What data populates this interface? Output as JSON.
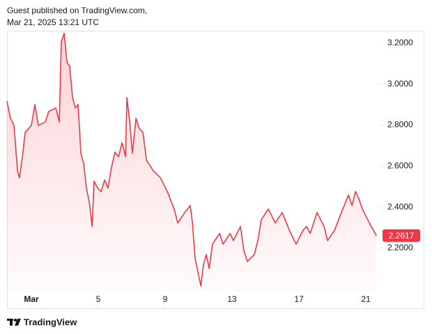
{
  "header": {
    "line1": "Guest published on TradingView.com,",
    "line2": "Mar 21, 2025 13:21 UTC"
  },
  "footer": {
    "brand": "TradingView"
  },
  "chart_data": {
    "type": "area",
    "color": "#f23645",
    "x": [
      -0.46,
      -0.25,
      -0.04,
      0.17,
      0.29,
      0.46,
      0.63,
      1.0,
      1.21,
      1.42,
      1.83,
      2.04,
      2.46,
      2.67,
      2.79,
      2.96,
      3.13,
      3.29,
      3.46,
      3.63,
      3.79,
      3.96,
      4.13,
      4.29,
      4.46,
      4.63,
      4.75,
      4.96,
      5.17,
      5.38,
      5.58,
      5.79,
      6.0,
      6.21,
      6.42,
      6.63,
      6.71,
      6.88,
      7.04,
      7.25,
      7.46,
      7.67,
      7.88,
      8.29,
      8.71,
      9.13,
      9.54,
      9.75,
      10.17,
      10.5,
      10.63,
      10.79,
      10.96,
      11.13,
      11.29,
      11.46,
      11.63,
      11.83,
      12.25,
      12.46,
      12.88,
      13.08,
      13.5,
      13.71,
      13.92,
      14.33,
      14.54,
      14.75,
      15.17,
      15.58,
      16.0,
      16.42,
      16.83,
      17.25,
      17.46,
      17.67,
      18.08,
      18.5,
      18.71,
      19.13,
      19.54,
      19.96,
      20.17,
      20.38,
      20.58,
      20.79,
      21.21,
      21.63
    ],
    "values": [
      2.918,
      2.833,
      2.799,
      2.578,
      2.544,
      2.646,
      2.765,
      2.799,
      2.901,
      2.799,
      2.816,
      2.867,
      2.884,
      2.816,
      3.207,
      3.248,
      3.105,
      3.088,
      2.935,
      2.884,
      2.901,
      2.663,
      2.612,
      2.493,
      2.425,
      2.306,
      2.527,
      2.493,
      2.476,
      2.533,
      2.493,
      2.595,
      2.669,
      2.646,
      2.714,
      2.646,
      2.935,
      2.816,
      2.663,
      2.833,
      2.782,
      2.765,
      2.629,
      2.578,
      2.544,
      2.476,
      2.391,
      2.323,
      2.374,
      2.408,
      2.323,
      2.152,
      2.084,
      2.016,
      2.118,
      2.169,
      2.101,
      2.22,
      2.272,
      2.22,
      2.272,
      2.237,
      2.306,
      2.186,
      2.135,
      2.169,
      2.237,
      2.339,
      2.391,
      2.323,
      2.374,
      2.288,
      2.22,
      2.288,
      2.306,
      2.272,
      2.374,
      2.306,
      2.237,
      2.288,
      2.374,
      2.459,
      2.408,
      2.476,
      2.442,
      2.391,
      2.323,
      2.2617
    ],
    "last_value_label": "2.2617",
    "xlim": [
      -0.46,
      21.83
    ],
    "xticks": [
      {
        "value": 1,
        "label": "Mar"
      },
      5,
      9,
      13,
      17,
      21
    ],
    "ylim": [
      1.989,
      3.261
    ],
    "yticks": [
      {
        "value": 2.2,
        "label": "2.2000"
      },
      {
        "value": 2.4,
        "label": "2.4000"
      },
      {
        "value": 2.6,
        "label": "2.6000"
      },
      {
        "value": 2.8,
        "label": "2.8000"
      },
      {
        "value": 3.0,
        "label": "3.0000"
      },
      {
        "value": 3.2,
        "label": "3.2000"
      }
    ]
  }
}
